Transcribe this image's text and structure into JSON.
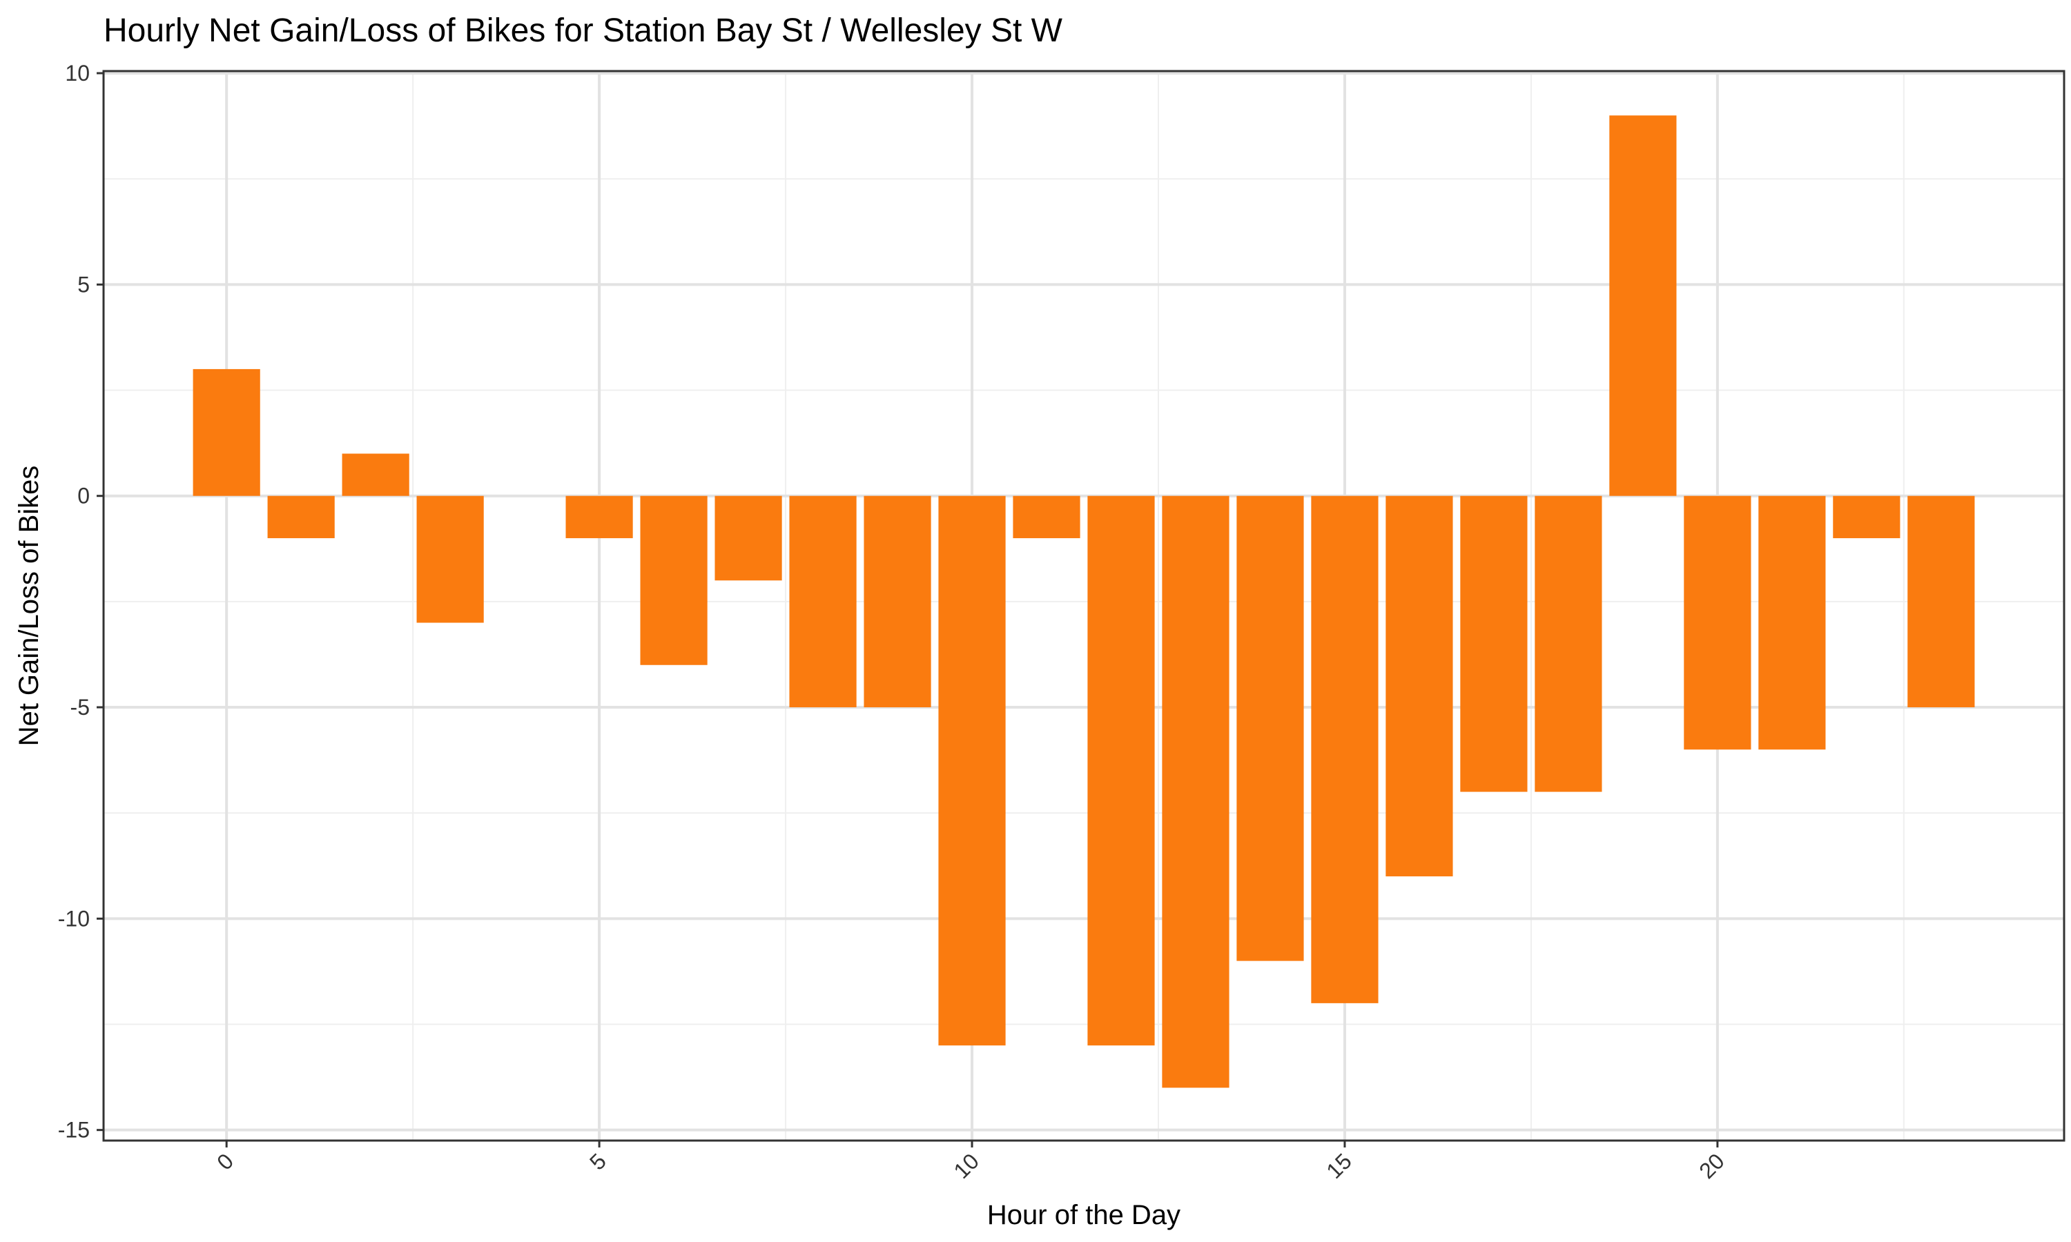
{
  "chart_data": {
    "type": "bar",
    "title": "Hourly Net Gain/Loss of Bikes for Station Bay St / Wellesley St W",
    "xlabel": "Hour of the Day",
    "ylabel": "Net Gain/Loss of Bikes",
    "x": [
      0,
      1,
      2,
      3,
      5,
      6,
      7,
      8,
      9,
      10,
      11,
      12,
      13,
      14,
      15,
      16,
      17,
      18,
      19,
      20,
      21,
      22,
      23
    ],
    "values": [
      3,
      -1,
      1,
      -3,
      -1,
      -4,
      -2,
      -5,
      -5,
      -13,
      -1,
      -13,
      -14,
      -11,
      -12,
      -9,
      -7,
      -7,
      9,
      -6,
      -6,
      -1,
      -5
    ],
    "xlim": [
      -1.65,
      24.65
    ],
    "ylim": [
      -15.25,
      10.05
    ],
    "xticks": [
      0,
      5,
      10,
      15,
      20
    ],
    "xtick_labels": [
      "0",
      "5",
      "10",
      "15",
      "20"
    ],
    "yticks": [
      10,
      5,
      0,
      -5,
      -10,
      -15
    ],
    "ytick_labels": [
      "10",
      "5",
      "0",
      "-5",
      "-10",
      "-15"
    ],
    "grid": true,
    "colors": {
      "bar": "#fa7b0f",
      "grid_major": "#e2e2e2",
      "grid_minor": "#efefef",
      "frame": "#333333"
    }
  }
}
